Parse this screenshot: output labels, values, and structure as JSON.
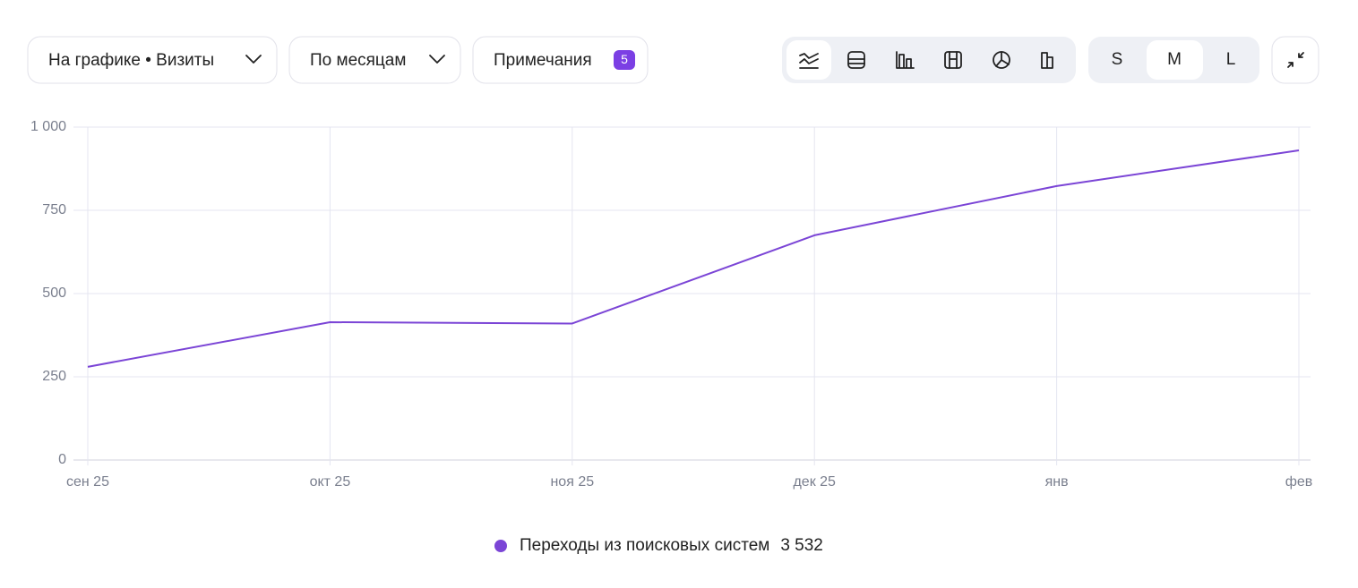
{
  "toolbar": {
    "metric": "На графике • Визиты",
    "period": "По месяцам",
    "notes": "Примечания",
    "notes_count": "5",
    "sizes": [
      "S",
      "M",
      "L"
    ]
  },
  "chart_data": {
    "type": "line",
    "categories": [
      "сен 25",
      "окт 25",
      "ноя 25",
      "дек 25",
      "янв",
      "фев"
    ],
    "series": [
      {
        "name": "Переходы из поисковых систем",
        "color": "#7b45d6",
        "values": [
          280,
          414,
          410,
          675,
          823,
          930
        ]
      }
    ],
    "total": "3 532",
    "ylim": [
      0,
      1000
    ],
    "yticks": [
      0,
      250,
      500,
      750,
      {
        "value": 1000,
        "label": "1 000"
      }
    ],
    "grid": true
  }
}
